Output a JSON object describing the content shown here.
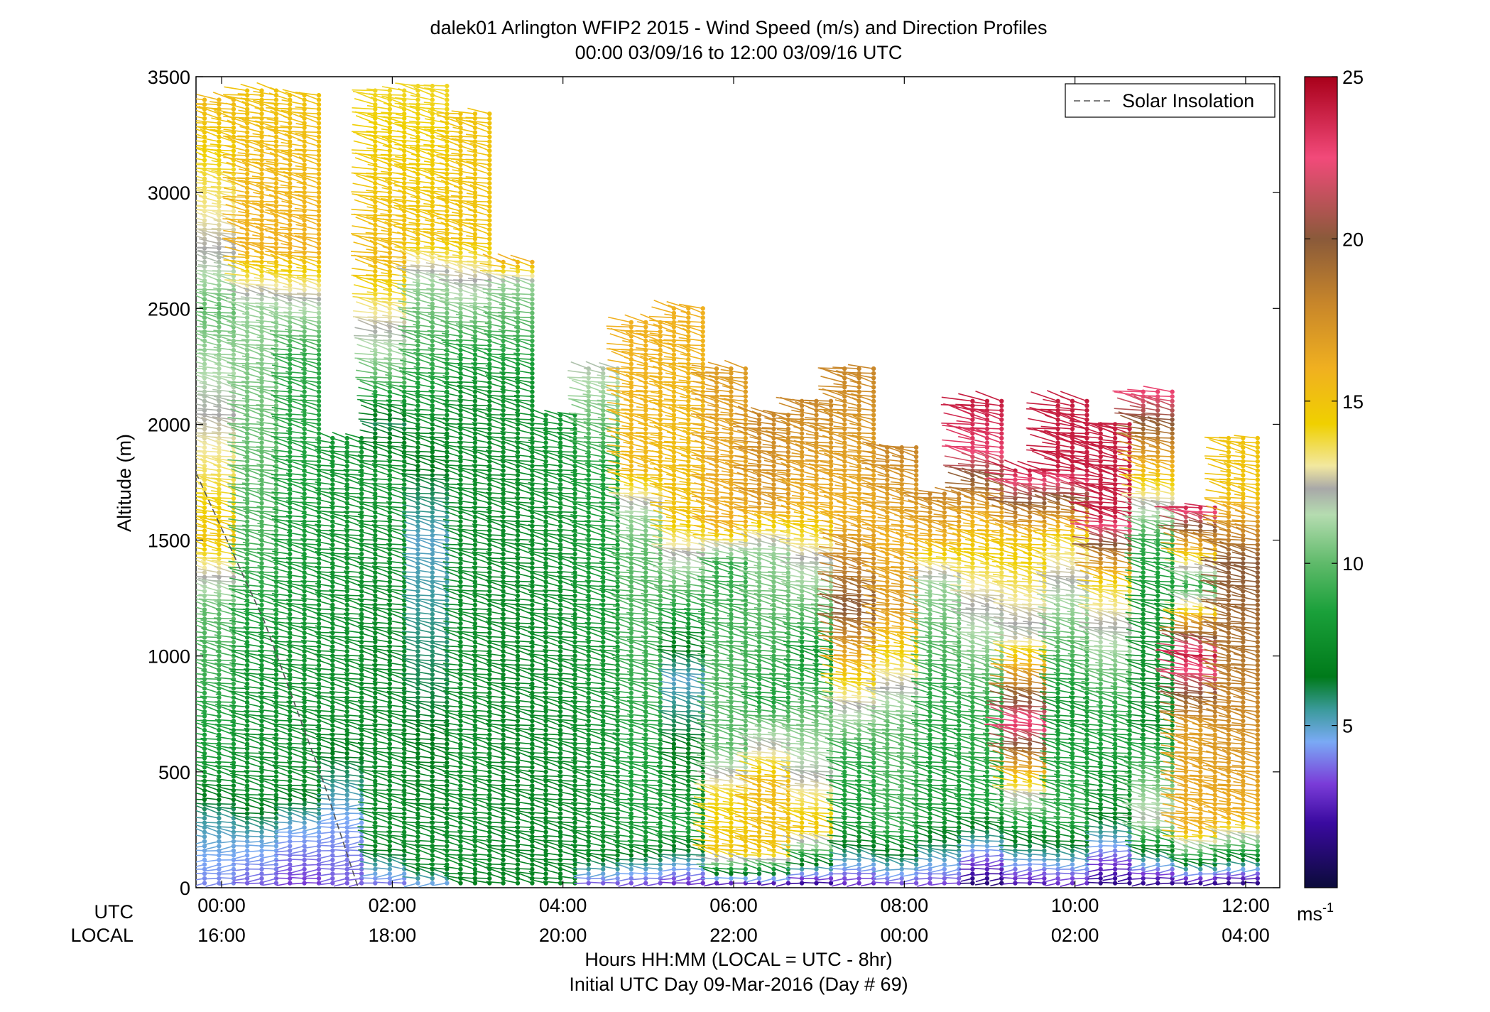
{
  "chart_data": {
    "type": "scatter",
    "title": "dalek01 Arlington WFIP2 2015 - Wind Speed (m/s) and Direction Profiles",
    "subtitle": "00:00 03/09/16 to 12:00 03/09/16  UTC",
    "xlabel": "Hours HH:MM  (LOCAL = UTC - 8hr)",
    "xlabel2": "Initial UTC Day 09-Mar-2016 (Day # 69)",
    "ylabel": "Altitude (m)",
    "row_label_utc": "UTC",
    "row_label_local": "LOCAL",
    "xlim_hours": [
      -0.3,
      12.4
    ],
    "ylim": [
      0,
      3500
    ],
    "yticks": [
      0,
      500,
      1000,
      1500,
      2000,
      2500,
      3000,
      3500
    ],
    "xticks": [
      {
        "hour": 0,
        "utc": "00:00",
        "local": "16:00"
      },
      {
        "hour": 2,
        "utc": "02:00",
        "local": "18:00"
      },
      {
        "hour": 4,
        "utc": "04:00",
        "local": "20:00"
      },
      {
        "hour": 6,
        "utc": "06:00",
        "local": "22:00"
      },
      {
        "hour": 8,
        "utc": "08:00",
        "local": "00:00"
      },
      {
        "hour": 10,
        "utc": "10:00",
        "local": "02:00"
      },
      {
        "hour": 12,
        "utc": "12:00",
        "local": "04:00"
      }
    ],
    "legend": {
      "label": "Solar Insolation",
      "placement": "top-right"
    },
    "colorbar": {
      "min": 0,
      "max": 25,
      "ticks": [
        5,
        10,
        15,
        20,
        25
      ],
      "unit": "ms",
      "unit_exponent": "-1",
      "stops": [
        {
          "v": 0,
          "c": "#0b0b3a"
        },
        {
          "v": 2,
          "c": "#3a0aa0"
        },
        {
          "v": 3.2,
          "c": "#7a3cd8"
        },
        {
          "v": 4.5,
          "c": "#7aaaf5"
        },
        {
          "v": 5.5,
          "c": "#3a9a9a"
        },
        {
          "v": 6.5,
          "c": "#007a1a"
        },
        {
          "v": 8.5,
          "c": "#1aa03a"
        },
        {
          "v": 10,
          "c": "#5fba6a"
        },
        {
          "v": 11.5,
          "c": "#b5dcb0"
        },
        {
          "v": 12.3,
          "c": "#a8a8a8"
        },
        {
          "v": 13,
          "c": "#f2e8a0"
        },
        {
          "v": 14.3,
          "c": "#f0d000"
        },
        {
          "v": 16,
          "c": "#f0b020"
        },
        {
          "v": 18,
          "c": "#c8862a"
        },
        {
          "v": 20,
          "c": "#8a5a3a"
        },
        {
          "v": 22.5,
          "c": "#f24a7a"
        },
        {
          "v": 25,
          "c": "#a8001a"
        }
      ]
    },
    "solar_insolation_curve": [
      [
        -0.3,
        1790
      ],
      [
        0.5,
        1150
      ],
      [
        1.2,
        450
      ],
      [
        1.6,
        0
      ]
    ],
    "wind_profiles": [
      {
        "t": 0.0,
        "ceiling": 3400,
        "layers": [
          [
            0,
            4
          ],
          [
            150,
            4.6
          ],
          [
            300,
            5.5
          ],
          [
            500,
            8
          ],
          [
            1200,
            10
          ],
          [
            1500,
            15
          ],
          [
            1900,
            13
          ],
          [
            2500,
            10
          ],
          [
            2700,
            12
          ],
          [
            3400,
            15.5
          ]
        ]
      },
      {
        "t": 0.5,
        "ceiling": 3450,
        "layers": [
          [
            0,
            3.5
          ],
          [
            200,
            4.8
          ],
          [
            400,
            7.5
          ],
          [
            1000,
            8
          ],
          [
            1500,
            9.5
          ],
          [
            2500,
            11
          ],
          [
            2750,
            16
          ],
          [
            3450,
            15
          ]
        ]
      },
      {
        "t": 1.0,
        "ceiling": 3420,
        "layers": [
          [
            0,
            3
          ],
          [
            250,
            4.6
          ],
          [
            450,
            7.5
          ],
          [
            1200,
            8
          ],
          [
            2300,
            9
          ],
          [
            2500,
            11.5
          ],
          [
            2750,
            16
          ],
          [
            3420,
            15
          ]
        ]
      },
      {
        "t": 1.5,
        "ceiling": 1950,
        "layers": [
          [
            0,
            3.5
          ],
          [
            300,
            4.5
          ],
          [
            700,
            7.5
          ],
          [
            1950,
            8
          ]
        ]
      },
      {
        "t": 2.0,
        "ceiling": 3450,
        "layers": [
          [
            0,
            3.5
          ],
          [
            200,
            7.5
          ],
          [
            1000,
            7.2
          ],
          [
            1800,
            8
          ],
          [
            2000,
            6
          ],
          [
            2200,
            10
          ],
          [
            2700,
            15.5
          ],
          [
            3450,
            14
          ]
        ]
      },
      {
        "t": 2.5,
        "ceiling": 3460,
        "layers": [
          [
            0,
            4
          ],
          [
            100,
            7.5
          ],
          [
            1500,
            5
          ],
          [
            2000,
            7.5
          ],
          [
            2600,
            11
          ],
          [
            2800,
            15
          ],
          [
            3460,
            14
          ]
        ]
      },
      {
        "t": 3.0,
        "ceiling": 3350,
        "layers": [
          [
            0,
            6.5
          ],
          [
            100,
            7.5
          ],
          [
            2100,
            7.5
          ],
          [
            2300,
            8.5
          ],
          [
            2600,
            12
          ],
          [
            2800,
            15
          ],
          [
            3350,
            15
          ]
        ]
      },
      {
        "t": 3.5,
        "ceiling": 2700,
        "layers": [
          [
            0,
            7
          ],
          [
            1900,
            7.5
          ],
          [
            2200,
            8
          ],
          [
            2600,
            11
          ],
          [
            2700,
            16
          ]
        ]
      },
      {
        "t": 4.0,
        "ceiling": 2050,
        "layers": [
          [
            0,
            7
          ],
          [
            2050,
            8
          ]
        ]
      },
      {
        "t": 4.5,
        "ceiling": 2250,
        "layers": [
          [
            0,
            3
          ],
          [
            150,
            7.5
          ],
          [
            1800,
            8.5
          ],
          [
            2250,
            12
          ]
        ]
      },
      {
        "t": 5.0,
        "ceiling": 2450,
        "layers": [
          [
            0,
            3
          ],
          [
            200,
            8
          ],
          [
            1450,
            10
          ],
          [
            1600,
            11
          ],
          [
            1800,
            15.5
          ],
          [
            2450,
            16
          ]
        ]
      },
      {
        "t": 5.5,
        "ceiling": 2500,
        "layers": [
          [
            0,
            2.5
          ],
          [
            250,
            8.5
          ],
          [
            900,
            5
          ],
          [
            1300,
            10
          ],
          [
            1600,
            15
          ],
          [
            2500,
            16
          ]
        ]
      },
      {
        "t": 6.0,
        "ceiling": 2250,
        "layers": [
          [
            0,
            0.8
          ],
          [
            150,
            15
          ],
          [
            400,
            14
          ],
          [
            600,
            10
          ],
          [
            1400,
            9
          ],
          [
            1550,
            16
          ],
          [
            2250,
            17
          ]
        ]
      },
      {
        "t": 6.5,
        "ceiling": 2050,
        "layers": [
          [
            0,
            0.5
          ],
          [
            150,
            15
          ],
          [
            450,
            15.5
          ],
          [
            800,
            8.5
          ],
          [
            1450,
            11
          ],
          [
            1650,
            17
          ],
          [
            2050,
            18
          ]
        ]
      },
      {
        "t": 7.0,
        "ceiling": 2100,
        "layers": [
          [
            0,
            0.8
          ],
          [
            250,
            15
          ],
          [
            500,
            12
          ],
          [
            1000,
            8
          ],
          [
            1400,
            12
          ],
          [
            1650,
            16
          ],
          [
            2100,
            18
          ]
        ]
      },
      {
        "t": 7.5,
        "ceiling": 2250,
        "layers": [
          [
            0,
            2.5
          ],
          [
            250,
            8
          ],
          [
            600,
            9
          ],
          [
            1200,
            20
          ],
          [
            1600,
            16
          ],
          [
            2250,
            18
          ]
        ]
      },
      {
        "t": 8.0,
        "ceiling": 1900,
        "layers": [
          [
            0,
            3
          ],
          [
            250,
            9
          ],
          [
            700,
            10
          ],
          [
            1200,
            17
          ],
          [
            1500,
            16
          ],
          [
            1900,
            18
          ]
        ]
      },
      {
        "t": 8.5,
        "ceiling": 1700,
        "layers": [
          [
            0,
            3
          ],
          [
            300,
            8
          ],
          [
            900,
            9
          ],
          [
            1300,
            11
          ],
          [
            1500,
            16
          ],
          [
            1700,
            18
          ]
        ]
      },
      {
        "t": 9.0,
        "ceiling": 2100,
        "layers": [
          [
            0,
            0.8
          ],
          [
            350,
            8.5
          ],
          [
            800,
            9
          ],
          [
            1300,
            13
          ],
          [
            1600,
            16
          ],
          [
            1900,
            23
          ],
          [
            2100,
            24
          ]
        ]
      },
      {
        "t": 9.5,
        "ceiling": 1800,
        "layers": [
          [
            0,
            2
          ],
          [
            300,
            9
          ],
          [
            700,
            23
          ],
          [
            1100,
            12
          ],
          [
            1500,
            15
          ],
          [
            1800,
            24
          ]
        ]
      },
      {
        "t": 10.0,
        "ceiling": 2100,
        "layers": [
          [
            0,
            2.5
          ],
          [
            300,
            9
          ],
          [
            800,
            8
          ],
          [
            1200,
            11
          ],
          [
            1500,
            14
          ],
          [
            1800,
            24
          ]
        ]
      },
      {
        "t": 10.5,
        "ceiling": 2000,
        "layers": [
          [
            0,
            1.2
          ],
          [
            350,
            7.5
          ],
          [
            800,
            9
          ],
          [
            1300,
            14
          ],
          [
            1600,
            24
          ],
          [
            2000,
            24
          ]
        ]
      },
      {
        "t": 11.0,
        "ceiling": 2150,
        "layers": [
          [
            0,
            1
          ],
          [
            300,
            12
          ],
          [
            700,
            7.5
          ],
          [
            1200,
            8
          ],
          [
            1500,
            9
          ],
          [
            2150,
            23
          ]
        ]
      },
      {
        "t": 11.5,
        "ceiling": 1650,
        "layers": [
          [
            0,
            0.5
          ],
          [
            250,
            16
          ],
          [
            700,
            17
          ],
          [
            1000,
            24
          ],
          [
            1300,
            9
          ],
          [
            1650,
            24
          ]
        ]
      },
      {
        "t": 12.0,
        "ceiling": 1950,
        "layers": [
          [
            0,
            0.5
          ],
          [
            300,
            16
          ],
          [
            800,
            18
          ],
          [
            1400,
            20
          ],
          [
            1700,
            15
          ],
          [
            1950,
            15
          ]
        ]
      }
    ]
  }
}
